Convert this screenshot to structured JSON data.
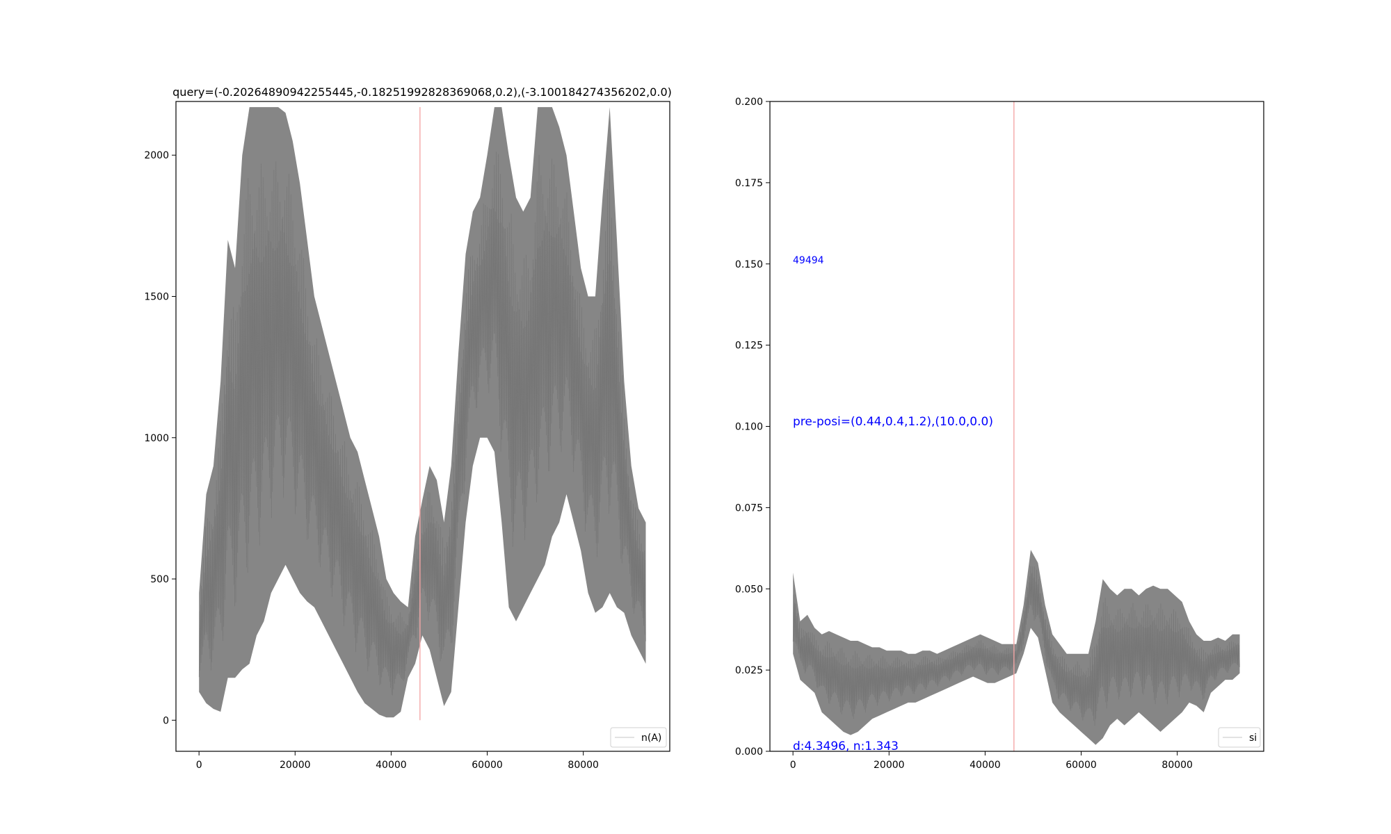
{
  "chart_data": [
    {
      "type": "line",
      "title": "query=(-0.20264890942255445,-0.18251992828369068,0.2),(-3.100184274356202,0.0)",
      "xlabel": "",
      "ylabel": "",
      "xlim": [
        -4800,
        98000
      ],
      "ylim": [
        -110,
        2190
      ],
      "xticks": [
        0,
        20000,
        40000,
        60000,
        80000
      ],
      "xtick_labels": [
        "0",
        "20000",
        "40000",
        "60000",
        "80000"
      ],
      "yticks": [
        0,
        500,
        1000,
        1500,
        2000
      ],
      "ytick_labels": [
        "0",
        "500",
        "1000",
        "1500",
        "2000"
      ],
      "legend": {
        "labels": [
          "n(A)"
        ],
        "placement": "bottom-right"
      },
      "series": [
        {
          "name": "n(A)",
          "color": "#808080",
          "x": [
            0,
            1500,
            3000,
            4500,
            6000,
            7500,
            9000,
            10500,
            12000,
            13500,
            15000,
            16500,
            18000,
            19500,
            21000,
            22500,
            24000,
            25500,
            27000,
            28500,
            30000,
            31500,
            33000,
            34500,
            36000,
            37500,
            39000,
            40500,
            42000,
            43500,
            45000,
            46500,
            48000,
            49500,
            51000,
            52500,
            54000,
            55500,
            57000,
            58500,
            60000,
            61500,
            63000,
            64500,
            66000,
            67500,
            69000,
            70500,
            72000,
            73500,
            75000,
            76500,
            78000,
            79500,
            81000,
            82500,
            84000,
            85500,
            87000,
            88500,
            90000,
            91500,
            93000
          ],
          "y_low": [
            100,
            60,
            40,
            30,
            150,
            150,
            180,
            200,
            300,
            350,
            450,
            500,
            550,
            500,
            450,
            420,
            400,
            350,
            300,
            250,
            200,
            150,
            100,
            60,
            40,
            20,
            10,
            10,
            30,
            150,
            200,
            300,
            250,
            150,
            50,
            100,
            400,
            700,
            900,
            1000,
            1000,
            950,
            700,
            400,
            350,
            400,
            450,
            500,
            550,
            650,
            700,
            800,
            700,
            600,
            450,
            380,
            400,
            450,
            400,
            380,
            300,
            250,
            200
          ],
          "y_high": [
            450,
            800,
            900,
            1200,
            1700,
            1600,
            2000,
            2170,
            2170,
            2170,
            2170,
            2170,
            2150,
            2050,
            1900,
            1700,
            1500,
            1400,
            1300,
            1200,
            1100,
            1000,
            950,
            850,
            750,
            650,
            500,
            450,
            420,
            400,
            650,
            780,
            900,
            850,
            700,
            900,
            1300,
            1650,
            1800,
            1850,
            2000,
            2170,
            2170,
            2000,
            1850,
            1800,
            1850,
            2170,
            2170,
            2170,
            2100,
            2000,
            1800,
            1600,
            1500,
            1500,
            1850,
            2170,
            1700,
            1200,
            900,
            750,
            700
          ]
        }
      ],
      "vline": {
        "x": 46000,
        "y_from": 0,
        "y_to": 2170,
        "color": "#f4a6a6"
      }
    },
    {
      "type": "line",
      "title": "",
      "xlabel": "",
      "ylabel": "",
      "xlim": [
        -4800,
        98000
      ],
      "ylim": [
        0,
        0.2
      ],
      "xticks": [
        0,
        20000,
        40000,
        60000,
        80000
      ],
      "xtick_labels": [
        "0",
        "20000",
        "40000",
        "60000",
        "80000"
      ],
      "yticks": [
        0,
        0.025,
        0.05,
        0.075,
        0.1,
        0.125,
        0.15,
        0.175,
        0.2
      ],
      "ytick_labels": [
        "0.000",
        "0.025",
        "0.050",
        "0.075",
        "0.100",
        "0.125",
        "0.150",
        "0.175",
        "0.200"
      ],
      "legend": {
        "labels": [
          "si"
        ],
        "placement": "bottom-right"
      },
      "series": [
        {
          "name": "si",
          "color": "#808080",
          "x": [
            0,
            1500,
            3000,
            4500,
            6000,
            7500,
            9000,
            10500,
            12000,
            13500,
            15000,
            16500,
            18000,
            19500,
            21000,
            22500,
            24000,
            25500,
            27000,
            28500,
            30000,
            31500,
            33000,
            34500,
            36000,
            37500,
            39000,
            40500,
            42000,
            43500,
            45000,
            46500,
            48000,
            49500,
            51000,
            52500,
            54000,
            55500,
            57000,
            58500,
            60000,
            61500,
            63000,
            64500,
            66000,
            67500,
            69000,
            70500,
            72000,
            73500,
            75000,
            76500,
            78000,
            79500,
            81000,
            82500,
            84000,
            85500,
            87000,
            88500,
            90000,
            91500,
            93000
          ],
          "y_low": [
            0.03,
            0.022,
            0.02,
            0.018,
            0.012,
            0.01,
            0.008,
            0.006,
            0.005,
            0.006,
            0.008,
            0.01,
            0.011,
            0.012,
            0.013,
            0.014,
            0.015,
            0.015,
            0.016,
            0.017,
            0.018,
            0.019,
            0.02,
            0.021,
            0.022,
            0.023,
            0.022,
            0.021,
            0.021,
            0.022,
            0.023,
            0.024,
            0.03,
            0.038,
            0.035,
            0.025,
            0.015,
            0.012,
            0.01,
            0.008,
            0.006,
            0.004,
            0.002,
            0.004,
            0.008,
            0.01,
            0.008,
            0.01,
            0.012,
            0.01,
            0.008,
            0.006,
            0.008,
            0.01,
            0.012,
            0.015,
            0.014,
            0.012,
            0.018,
            0.02,
            0.022,
            0.022,
            0.024
          ],
          "y_high": [
            0.055,
            0.04,
            0.042,
            0.038,
            0.036,
            0.037,
            0.036,
            0.035,
            0.034,
            0.034,
            0.033,
            0.032,
            0.032,
            0.031,
            0.031,
            0.031,
            0.03,
            0.03,
            0.031,
            0.031,
            0.03,
            0.031,
            0.032,
            0.033,
            0.034,
            0.035,
            0.036,
            0.035,
            0.034,
            0.033,
            0.033,
            0.033,
            0.045,
            0.062,
            0.058,
            0.045,
            0.036,
            0.033,
            0.03,
            0.03,
            0.03,
            0.03,
            0.04,
            0.053,
            0.05,
            0.048,
            0.05,
            0.05,
            0.048,
            0.05,
            0.051,
            0.05,
            0.05,
            0.048,
            0.046,
            0.04,
            0.036,
            0.034,
            0.034,
            0.035,
            0.034,
            0.036,
            0.036
          ]
        }
      ],
      "vline": {
        "x": 46000,
        "y_from": 0,
        "y_to": 0.2,
        "color": "#f4a6a6"
      },
      "annotations": [
        {
          "text": "49494",
          "x": 0,
          "y": 0.15,
          "color": "#0000ff",
          "size": "small"
        },
        {
          "text": "pre-posi=(0.44,0.4,1.2),(10.0,0.0)",
          "x": 0,
          "y": 0.1,
          "color": "#0000ff",
          "size": "large"
        },
        {
          "text": "d:4.3496, n:1.343",
          "x": 0,
          "y": 0,
          "color": "#0000ff",
          "size": "large"
        }
      ]
    }
  ]
}
